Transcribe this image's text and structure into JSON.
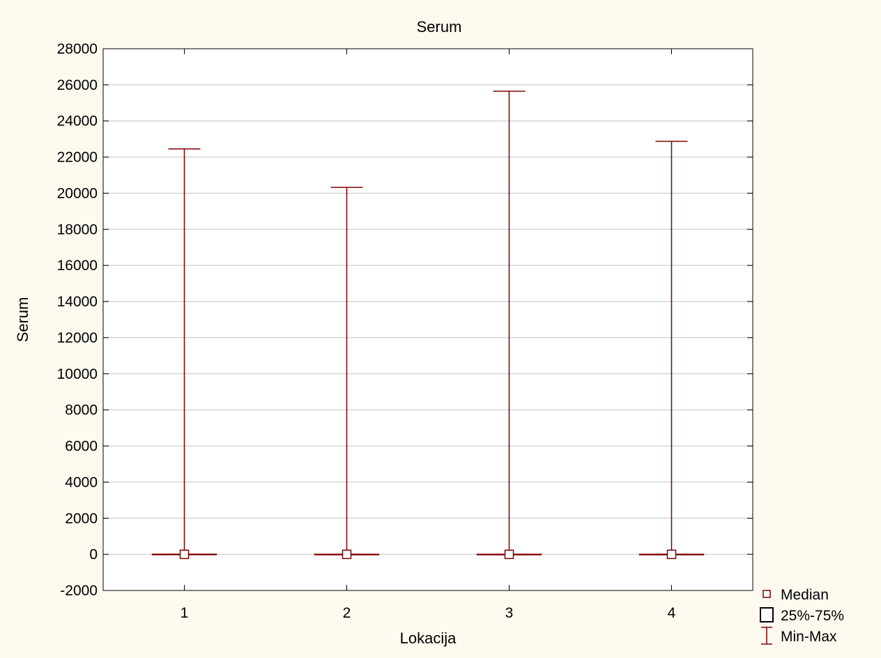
{
  "chart_data": {
    "type": "boxplot",
    "title": "Serum",
    "xlabel": "Lokacija",
    "ylabel": "Serum",
    "ylim": [
      -2000,
      28000
    ],
    "yticks": [
      -2000,
      0,
      2000,
      4000,
      6000,
      8000,
      10000,
      12000,
      14000,
      16000,
      18000,
      20000,
      22000,
      24000,
      26000,
      28000
    ],
    "categories": [
      "1",
      "2",
      "3",
      "4"
    ],
    "grid": true,
    "legend_position": "bottom-right",
    "series_color": "#7f0000",
    "boxes": [
      {
        "category": "1",
        "median": 0,
        "q1": 0,
        "q3": 10,
        "min": 0,
        "max": 22450
      },
      {
        "category": "2",
        "median": 0,
        "q1": 0,
        "q3": 5,
        "min": 0,
        "max": 20320
      },
      {
        "category": "3",
        "median": 0,
        "q1": 0,
        "q3": 5,
        "min": 0,
        "max": 25650
      },
      {
        "category": "4",
        "median": 0,
        "q1": 0,
        "q3": 5,
        "min": 0,
        "max": 22870
      }
    ],
    "legend": [
      {
        "label": "Median",
        "symbol": "small-square-icon"
      },
      {
        "label": "25%-75%",
        "symbol": "box-icon"
      },
      {
        "label": "Min-Max",
        "symbol": "whisker-icon"
      }
    ]
  }
}
